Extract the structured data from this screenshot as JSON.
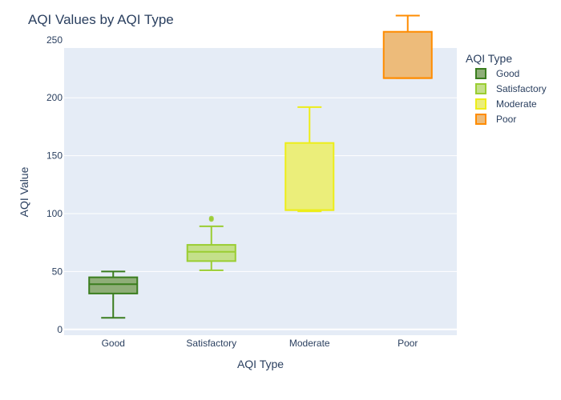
{
  "chart_data": {
    "type": "box",
    "title": "AQI Values by AQI Type",
    "xlabel": "AQI Type",
    "ylabel": "AQI Value",
    "ylim": [
      -5,
      243
    ],
    "yticks": [
      0,
      50,
      100,
      150,
      200,
      250
    ],
    "categories": [
      "Good",
      "Satisfactory",
      "Moderate",
      "Poor"
    ],
    "legend": {
      "title": "AQI Type",
      "position": "top-right"
    },
    "series": [
      {
        "name": "Good",
        "color": "#3a7d1e",
        "fill": "#8fae78",
        "min": 10,
        "q1": 31,
        "median": 39,
        "q3": 45,
        "max": 50,
        "outliers": []
      },
      {
        "name": "Satisfactory",
        "color": "#9acd32",
        "fill": "#c4e08a",
        "min": 51,
        "q1": 59,
        "median": 67,
        "q3": 73,
        "max": 89,
        "outliers": [
          95,
          96
        ]
      },
      {
        "name": "Moderate",
        "color": "#eded1a",
        "fill": "#ebee7a",
        "min": 102,
        "q1": 103,
        "median": 103,
        "q3": 161,
        "max": 192,
        "outliers": []
      },
      {
        "name": "Poor",
        "color": "#ff8c00",
        "fill": "#edbb7a",
        "min": 217,
        "q1": 217,
        "median": 217,
        "q3": 257,
        "max": 271,
        "outliers": []
      }
    ]
  }
}
